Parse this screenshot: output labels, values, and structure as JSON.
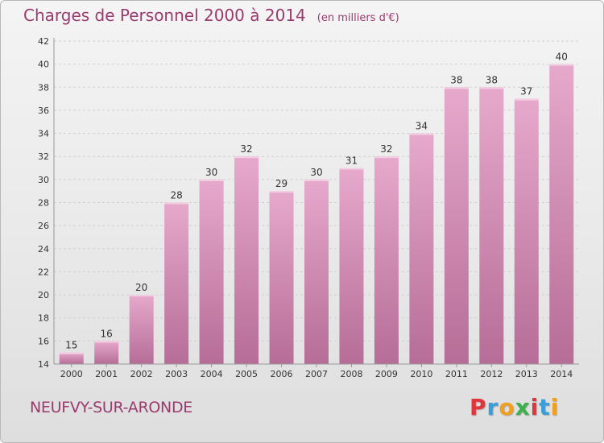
{
  "header": {
    "title": "Charges de Personnel 2000 à 2014",
    "subtitle": "(en milliers d'€)"
  },
  "footer": {
    "commune": "NEUFVY-SUR-ARONDE",
    "brand": "Proxiti",
    "brand_colors": [
      "#e2343a",
      "#3a9fd8",
      "#f0a01f",
      "#3ab14a",
      "#e2343a",
      "#3a9fd8",
      "#f0a01f"
    ]
  },
  "colors": {
    "bar_top": "#e6a9cc",
    "bar_bottom": "#b66d97",
    "text": "#9a3b6e",
    "grid": "#cfcfcf",
    "axis_text": "#333333"
  },
  "chart_data": {
    "type": "bar",
    "title": "Charges de Personnel 2000 à 2014",
    "subtitle": "(en milliers d'€)",
    "xlabel": "",
    "ylabel": "",
    "categories": [
      "2000",
      "2001",
      "2002",
      "2003",
      "2004",
      "2005",
      "2006",
      "2007",
      "2008",
      "2009",
      "2010",
      "2011",
      "2012",
      "2013",
      "2014"
    ],
    "values": [
      15,
      16,
      20,
      28,
      30,
      32,
      29,
      30,
      31,
      32,
      34,
      38,
      38,
      37,
      40
    ],
    "ylim": [
      14,
      42
    ],
    "yticks": [
      14,
      16,
      18,
      20,
      22,
      24,
      26,
      28,
      30,
      32,
      34,
      36,
      38,
      40,
      42
    ],
    "grid": "dashed-horizontal",
    "data_labels": true
  }
}
